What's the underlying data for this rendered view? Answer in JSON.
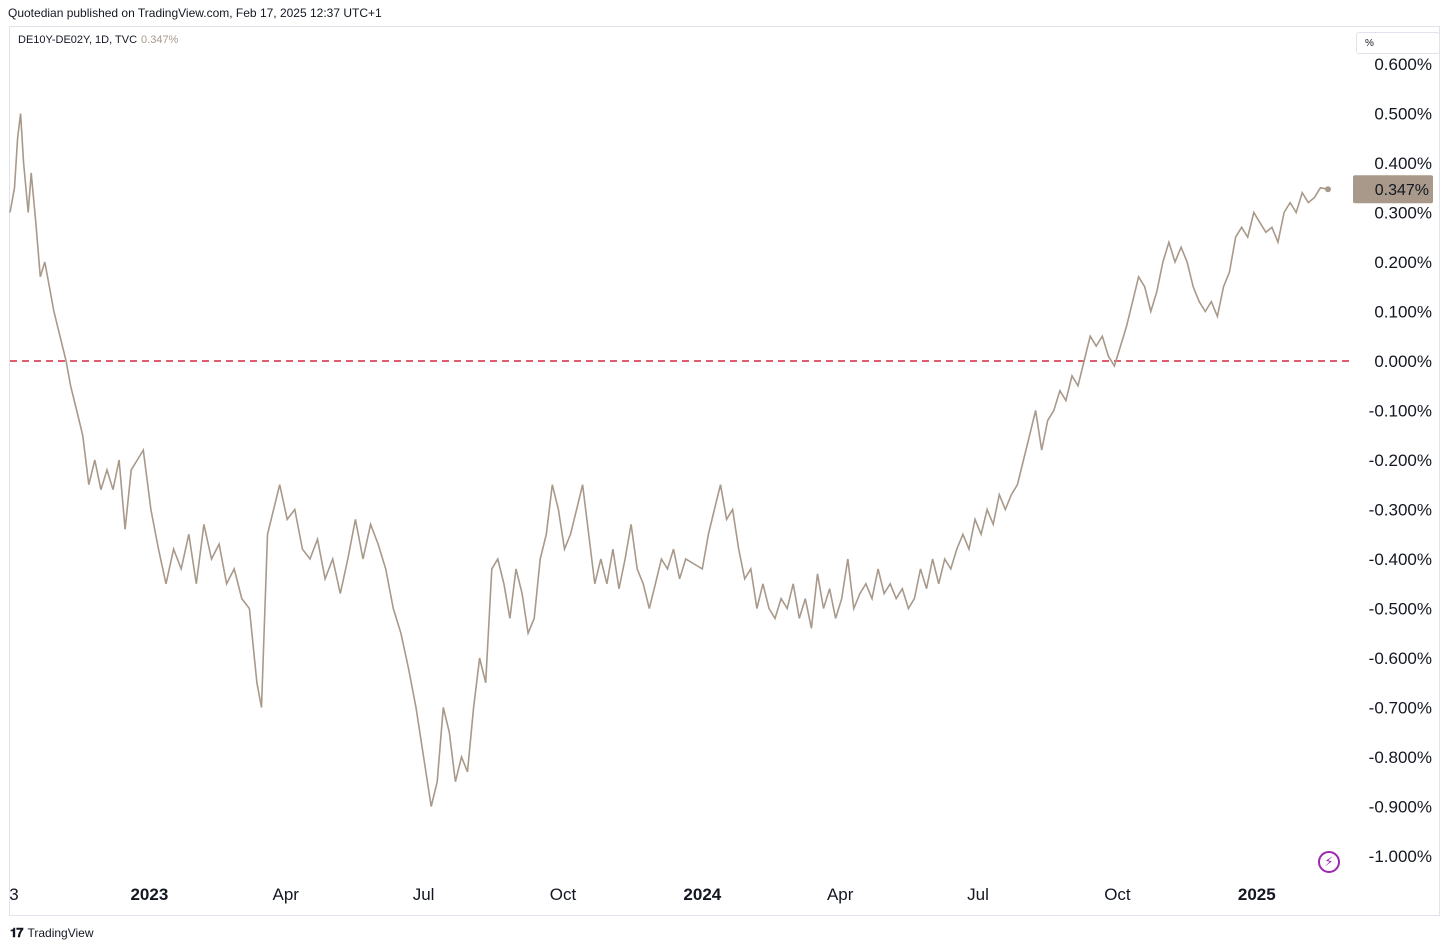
{
  "header": {
    "publisher": "Quotedian published on TradingView.com, Feb 17, 2025 12:37 UTC+1"
  },
  "legend": {
    "symbol": "DE10Y-DE02Y, 1D, TVC",
    "value": "0.347%"
  },
  "unit_label": "%",
  "footer": {
    "logo_text": "TradingView"
  },
  "icons": {
    "lightning": "lightning-icon",
    "logo": "tradingview-logo-icon"
  },
  "colors": {
    "line": "#a8998a",
    "zero_line": "#d7263d",
    "last_badge": "#a8998a"
  },
  "chart_data": {
    "type": "line",
    "title": "DE10Y-DE02Y, 1D, TVC",
    "ylim": [
      -1.05,
      0.62
    ],
    "y_ticks": [
      "0.600%",
      "0.500%",
      "0.400%",
      "0.300%",
      "0.200%",
      "0.100%",
      "0.000%",
      "-0.100%",
      "-0.200%",
      "-0.300%",
      "-0.400%",
      "-0.500%",
      "-0.600%",
      "-0.700%",
      "-0.800%",
      "-0.900%",
      "-1.000%"
    ],
    "y_tick_values": [
      0.6,
      0.5,
      0.4,
      0.3,
      0.2,
      0.1,
      0.0,
      -0.1,
      -0.2,
      -0.3,
      -0.4,
      -0.5,
      -0.6,
      -0.7,
      -0.8,
      -0.9,
      -1.0
    ],
    "x_ticks": [
      {
        "label": "3",
        "date": "2022-10-01",
        "bold": false
      },
      {
        "label": "2023",
        "date": "2023-01-01",
        "bold": true
      },
      {
        "label": "Apr",
        "date": "2023-04-01",
        "bold": false
      },
      {
        "label": "Jul",
        "date": "2023-07-01",
        "bold": false
      },
      {
        "label": "Oct",
        "date": "2023-10-01",
        "bold": false
      },
      {
        "label": "2024",
        "date": "2024-01-01",
        "bold": true
      },
      {
        "label": "Apr",
        "date": "2024-04-01",
        "bold": false
      },
      {
        "label": "Jul",
        "date": "2024-07-01",
        "bold": false
      },
      {
        "label": "Oct",
        "date": "2024-10-01",
        "bold": false
      },
      {
        "label": "2025",
        "date": "2025-01-01",
        "bold": true
      }
    ],
    "reference_line": {
      "value": 0.0,
      "style": "dashed"
    },
    "last_value": {
      "value": 0.347,
      "label": "0.347%"
    },
    "series": [
      {
        "points": [
          [
            "2022-10-01",
            0.3
          ],
          [
            "2022-10-04",
            0.35
          ],
          [
            "2022-10-06",
            0.45
          ],
          [
            "2022-10-08",
            0.5
          ],
          [
            "2022-10-10",
            0.4
          ],
          [
            "2022-10-13",
            0.3
          ],
          [
            "2022-10-15",
            0.38
          ],
          [
            "2022-10-18",
            0.28
          ],
          [
            "2022-10-21",
            0.17
          ],
          [
            "2022-10-24",
            0.2
          ],
          [
            "2022-10-27",
            0.15
          ],
          [
            "2022-10-30",
            0.1
          ],
          [
            "2022-11-03",
            0.05
          ],
          [
            "2022-11-07",
            0.0
          ],
          [
            "2022-11-10",
            -0.05
          ],
          [
            "2022-11-14",
            -0.1
          ],
          [
            "2022-11-18",
            -0.15
          ],
          [
            "2022-11-22",
            -0.25
          ],
          [
            "2022-11-26",
            -0.2
          ],
          [
            "2022-11-30",
            -0.26
          ],
          [
            "2022-12-04",
            -0.22
          ],
          [
            "2022-12-08",
            -0.26
          ],
          [
            "2022-12-12",
            -0.2
          ],
          [
            "2022-12-16",
            -0.34
          ],
          [
            "2022-12-20",
            -0.22
          ],
          [
            "2022-12-24",
            -0.2
          ],
          [
            "2022-12-28",
            -0.18
          ],
          [
            "2023-01-02",
            -0.3
          ],
          [
            "2023-01-07",
            -0.38
          ],
          [
            "2023-01-12",
            -0.45
          ],
          [
            "2023-01-17",
            -0.38
          ],
          [
            "2023-01-22",
            -0.42
          ],
          [
            "2023-01-27",
            -0.35
          ],
          [
            "2023-02-01",
            -0.45
          ],
          [
            "2023-02-06",
            -0.33
          ],
          [
            "2023-02-11",
            -0.4
          ],
          [
            "2023-02-16",
            -0.37
          ],
          [
            "2023-02-21",
            -0.45
          ],
          [
            "2023-02-26",
            -0.42
          ],
          [
            "2023-03-03",
            -0.48
          ],
          [
            "2023-03-08",
            -0.5
          ],
          [
            "2023-03-13",
            -0.65
          ],
          [
            "2023-03-16",
            -0.7
          ],
          [
            "2023-03-20",
            -0.35
          ],
          [
            "2023-03-24",
            -0.3
          ],
          [
            "2023-03-28",
            -0.25
          ],
          [
            "2023-04-02",
            -0.32
          ],
          [
            "2023-04-07",
            -0.3
          ],
          [
            "2023-04-12",
            -0.38
          ],
          [
            "2023-04-17",
            -0.4
          ],
          [
            "2023-04-22",
            -0.36
          ],
          [
            "2023-04-27",
            -0.44
          ],
          [
            "2023-05-02",
            -0.4
          ],
          [
            "2023-05-07",
            -0.47
          ],
          [
            "2023-05-12",
            -0.4
          ],
          [
            "2023-05-17",
            -0.32
          ],
          [
            "2023-05-22",
            -0.4
          ],
          [
            "2023-05-27",
            -0.33
          ],
          [
            "2023-06-01",
            -0.37
          ],
          [
            "2023-06-06",
            -0.42
          ],
          [
            "2023-06-11",
            -0.5
          ],
          [
            "2023-06-16",
            -0.55
          ],
          [
            "2023-06-21",
            -0.62
          ],
          [
            "2023-06-26",
            -0.7
          ],
          [
            "2023-07-01",
            -0.8
          ],
          [
            "2023-07-06",
            -0.9
          ],
          [
            "2023-07-10",
            -0.85
          ],
          [
            "2023-07-14",
            -0.7
          ],
          [
            "2023-07-18",
            -0.75
          ],
          [
            "2023-07-22",
            -0.85
          ],
          [
            "2023-07-26",
            -0.8
          ],
          [
            "2023-07-30",
            -0.83
          ],
          [
            "2023-08-03",
            -0.7
          ],
          [
            "2023-08-07",
            -0.6
          ],
          [
            "2023-08-11",
            -0.65
          ],
          [
            "2023-08-15",
            -0.42
          ],
          [
            "2023-08-19",
            -0.4
          ],
          [
            "2023-08-23",
            -0.45
          ],
          [
            "2023-08-27",
            -0.52
          ],
          [
            "2023-08-31",
            -0.42
          ],
          [
            "2023-09-04",
            -0.47
          ],
          [
            "2023-09-08",
            -0.55
          ],
          [
            "2023-09-12",
            -0.52
          ],
          [
            "2023-09-16",
            -0.4
          ],
          [
            "2023-09-20",
            -0.35
          ],
          [
            "2023-09-24",
            -0.25
          ],
          [
            "2023-09-28",
            -0.3
          ],
          [
            "2023-10-02",
            -0.38
          ],
          [
            "2023-10-06",
            -0.35
          ],
          [
            "2023-10-10",
            -0.3
          ],
          [
            "2023-10-14",
            -0.25
          ],
          [
            "2023-10-18",
            -0.35
          ],
          [
            "2023-10-22",
            -0.45
          ],
          [
            "2023-10-26",
            -0.4
          ],
          [
            "2023-10-30",
            -0.45
          ],
          [
            "2023-11-03",
            -0.38
          ],
          [
            "2023-11-07",
            -0.46
          ],
          [
            "2023-11-11",
            -0.4
          ],
          [
            "2023-11-15",
            -0.33
          ],
          [
            "2023-11-19",
            -0.42
          ],
          [
            "2023-11-23",
            -0.45
          ],
          [
            "2023-11-27",
            -0.5
          ],
          [
            "2023-12-01",
            -0.45
          ],
          [
            "2023-12-05",
            -0.4
          ],
          [
            "2023-12-09",
            -0.42
          ],
          [
            "2023-12-13",
            -0.38
          ],
          [
            "2023-12-17",
            -0.44
          ],
          [
            "2023-12-21",
            -0.4
          ],
          [
            "2024-01-01",
            -0.42
          ],
          [
            "2024-01-05",
            -0.35
          ],
          [
            "2024-01-09",
            -0.3
          ],
          [
            "2024-01-13",
            -0.25
          ],
          [
            "2024-01-17",
            -0.32
          ],
          [
            "2024-01-21",
            -0.3
          ],
          [
            "2024-01-25",
            -0.38
          ],
          [
            "2024-01-29",
            -0.44
          ],
          [
            "2024-02-02",
            -0.42
          ],
          [
            "2024-02-06",
            -0.5
          ],
          [
            "2024-02-10",
            -0.45
          ],
          [
            "2024-02-14",
            -0.5
          ],
          [
            "2024-02-18",
            -0.52
          ],
          [
            "2024-02-22",
            -0.48
          ],
          [
            "2024-02-26",
            -0.5
          ],
          [
            "2024-03-01",
            -0.45
          ],
          [
            "2024-03-05",
            -0.52
          ],
          [
            "2024-03-09",
            -0.48
          ],
          [
            "2024-03-13",
            -0.54
          ],
          [
            "2024-03-17",
            -0.43
          ],
          [
            "2024-03-21",
            -0.5
          ],
          [
            "2024-03-25",
            -0.46
          ],
          [
            "2024-03-29",
            -0.52
          ],
          [
            "2024-04-02",
            -0.48
          ],
          [
            "2024-04-06",
            -0.4
          ],
          [
            "2024-04-10",
            -0.5
          ],
          [
            "2024-04-14",
            -0.47
          ],
          [
            "2024-04-18",
            -0.45
          ],
          [
            "2024-04-22",
            -0.48
          ],
          [
            "2024-04-26",
            -0.42
          ],
          [
            "2024-04-30",
            -0.47
          ],
          [
            "2024-05-04",
            -0.45
          ],
          [
            "2024-05-08",
            -0.48
          ],
          [
            "2024-05-12",
            -0.46
          ],
          [
            "2024-05-16",
            -0.5
          ],
          [
            "2024-05-20",
            -0.48
          ],
          [
            "2024-05-24",
            -0.42
          ],
          [
            "2024-05-28",
            -0.46
          ],
          [
            "2024-06-01",
            -0.4
          ],
          [
            "2024-06-05",
            -0.45
          ],
          [
            "2024-06-09",
            -0.4
          ],
          [
            "2024-06-13",
            -0.42
          ],
          [
            "2024-06-17",
            -0.38
          ],
          [
            "2024-06-21",
            -0.35
          ],
          [
            "2024-06-25",
            -0.38
          ],
          [
            "2024-06-29",
            -0.32
          ],
          [
            "2024-07-03",
            -0.35
          ],
          [
            "2024-07-07",
            -0.3
          ],
          [
            "2024-07-11",
            -0.33
          ],
          [
            "2024-07-15",
            -0.27
          ],
          [
            "2024-07-19",
            -0.3
          ],
          [
            "2024-07-23",
            -0.27
          ],
          [
            "2024-07-27",
            -0.25
          ],
          [
            "2024-07-31",
            -0.2
          ],
          [
            "2024-08-04",
            -0.15
          ],
          [
            "2024-08-08",
            -0.1
          ],
          [
            "2024-08-12",
            -0.18
          ],
          [
            "2024-08-16",
            -0.12
          ],
          [
            "2024-08-20",
            -0.1
          ],
          [
            "2024-08-24",
            -0.06
          ],
          [
            "2024-08-28",
            -0.08
          ],
          [
            "2024-09-01",
            -0.03
          ],
          [
            "2024-09-05",
            -0.05
          ],
          [
            "2024-09-09",
            0.0
          ],
          [
            "2024-09-13",
            0.05
          ],
          [
            "2024-09-17",
            0.03
          ],
          [
            "2024-09-21",
            0.05
          ],
          [
            "2024-09-25",
            0.01
          ],
          [
            "2024-09-29",
            -0.01
          ],
          [
            "2024-10-03",
            0.03
          ],
          [
            "2024-10-07",
            0.07
          ],
          [
            "2024-10-11",
            0.12
          ],
          [
            "2024-10-15",
            0.17
          ],
          [
            "2024-10-19",
            0.15
          ],
          [
            "2024-10-23",
            0.1
          ],
          [
            "2024-10-27",
            0.14
          ],
          [
            "2024-10-31",
            0.2
          ],
          [
            "2024-11-04",
            0.24
          ],
          [
            "2024-11-08",
            0.2
          ],
          [
            "2024-11-12",
            0.23
          ],
          [
            "2024-11-16",
            0.2
          ],
          [
            "2024-11-20",
            0.15
          ],
          [
            "2024-11-24",
            0.12
          ],
          [
            "2024-11-28",
            0.1
          ],
          [
            "2024-12-02",
            0.12
          ],
          [
            "2024-12-06",
            0.09
          ],
          [
            "2024-12-10",
            0.15
          ],
          [
            "2024-12-14",
            0.18
          ],
          [
            "2024-12-18",
            0.25
          ],
          [
            "2024-12-22",
            0.27
          ],
          [
            "2024-12-26",
            0.25
          ],
          [
            "2024-12-30",
            0.3
          ],
          [
            "2025-01-03",
            0.28
          ],
          [
            "2025-01-07",
            0.26
          ],
          [
            "2025-01-11",
            0.27
          ],
          [
            "2025-01-15",
            0.24
          ],
          [
            "2025-01-19",
            0.3
          ],
          [
            "2025-01-23",
            0.32
          ],
          [
            "2025-01-27",
            0.3
          ],
          [
            "2025-01-31",
            0.34
          ],
          [
            "2025-02-04",
            0.32
          ],
          [
            "2025-02-08",
            0.33
          ],
          [
            "2025-02-12",
            0.35
          ],
          [
            "2025-02-17",
            0.347
          ]
        ]
      }
    ]
  }
}
